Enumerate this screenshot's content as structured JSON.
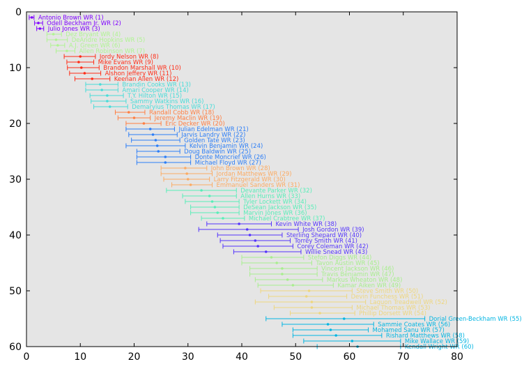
{
  "chart_data": {
    "type": "errorbar-scatter",
    "title": "",
    "xlabel": "",
    "ylabel": "",
    "xlim": [
      0,
      80
    ],
    "ylim": [
      60,
      0
    ],
    "xticks": [
      0,
      10,
      20,
      30,
      40,
      50,
      60,
      70,
      80
    ],
    "yticks": [
      0,
      10,
      20,
      30,
      40,
      50,
      60
    ],
    "grid": false,
    "background": "#e5e5e5",
    "tier_colors": [
      "#7f00ff",
      "#b0f492",
      "#ff2c16",
      "#48dcd8",
      "#ff7e41",
      "#2c7ef7",
      "#fcab63",
      "#58eeb8",
      "#5434fc",
      "#a8ee8e",
      "#eed67e",
      "#03b5e2"
    ],
    "points": [
      {
        "label": "Antonio Brown WR (1)",
        "rank": 1,
        "mean": 1.0,
        "lo": 0.5,
        "hi": 1.4,
        "tier": 0
      },
      {
        "label": "Odell Beckham Jr. WR (2)",
        "rank": 2,
        "mean": 2.2,
        "lo": 1.5,
        "hi": 3.0,
        "tier": 0
      },
      {
        "label": "Julio Jones WR (3)",
        "rank": 3,
        "mean": 2.5,
        "lo": 1.9,
        "hi": 3.2,
        "tier": 0
      },
      {
        "label": "Dez Bryant WR (4)",
        "rank": 4,
        "mean": 5.0,
        "lo": 3.8,
        "hi": 6.5,
        "tier": 1
      },
      {
        "label": "DeAndre Hopkins WR (5)",
        "rank": 5,
        "mean": 5.5,
        "lo": 3.8,
        "hi": 7.6,
        "tier": 1
      },
      {
        "label": "A.J. Green WR (6)",
        "rank": 6,
        "mean": 5.8,
        "lo": 4.5,
        "hi": 7.1,
        "tier": 1
      },
      {
        "label": "Allen Robinson WR (7)",
        "rank": 7,
        "mean": 7.5,
        "lo": 5.5,
        "hi": 9.0,
        "tier": 1
      },
      {
        "label": "Jordy Nelson WR (8)",
        "rank": 8,
        "mean": 10.0,
        "lo": 7.0,
        "hi": 12.8,
        "tier": 2
      },
      {
        "label": "Mike Evans WR (9)",
        "rank": 9,
        "mean": 9.7,
        "lo": 7.5,
        "hi": 12.5,
        "tier": 2
      },
      {
        "label": "Brandon Marshall WR (10)",
        "rank": 10,
        "mean": 10.2,
        "lo": 7.6,
        "hi": 13.5,
        "tier": 2
      },
      {
        "label": "Alshon Jeffery WR (11)",
        "rank": 11,
        "mean": 10.8,
        "lo": 8.0,
        "hi": 13.8,
        "tier": 2
      },
      {
        "label": "Keenan Allen WR (12)",
        "rank": 12,
        "mean": 12.2,
        "lo": 9.0,
        "hi": 15.5,
        "tier": 2
      },
      {
        "label": "Brandin Cooks WR (13)",
        "rank": 13,
        "mean": 13.7,
        "lo": 11.0,
        "hi": 17.0,
        "tier": 3
      },
      {
        "label": "Amari Cooper WR (14)",
        "rank": 14,
        "mean": 14.0,
        "lo": 11.0,
        "hi": 17.0,
        "tier": 3
      },
      {
        "label": "T.Y. Hilton WR (15)",
        "rank": 15,
        "mean": 15.0,
        "lo": 11.8,
        "hi": 18.0,
        "tier": 3
      },
      {
        "label": "Sammy Watkins WR (16)",
        "rank": 16,
        "mean": 15.0,
        "lo": 12.0,
        "hi": 18.5,
        "tier": 3
      },
      {
        "label": "Demaryius Thomas WR (17)",
        "rank": 17,
        "mean": 15.5,
        "lo": 12.5,
        "hi": 18.8,
        "tier": 3
      },
      {
        "label": "Randall Cobb WR (18)",
        "rank": 18,
        "mean": 19.0,
        "lo": 16.5,
        "hi": 22.0,
        "tier": 4
      },
      {
        "label": "Jeremy Maclin WR (19)",
        "rank": 19,
        "mean": 20.0,
        "lo": 17.0,
        "hi": 23.0,
        "tier": 4
      },
      {
        "label": "Eric Decker WR (20)",
        "rank": 20,
        "mean": 21.8,
        "lo": 18.5,
        "hi": 25.0,
        "tier": 4
      },
      {
        "label": "Julian Edelman WR (21)",
        "rank": 21,
        "mean": 23.0,
        "lo": 18.5,
        "hi": 27.5,
        "tier": 5
      },
      {
        "label": "Jarvis Landry WR (22)",
        "rank": 22,
        "mean": 23.5,
        "lo": 19.0,
        "hi": 28.0,
        "tier": 5
      },
      {
        "label": "Golden Tate WR (23)",
        "rank": 23,
        "mean": 24.0,
        "lo": 19.5,
        "hi": 28.5,
        "tier": 5
      },
      {
        "label": "Kelvin Benjamin WR (24)",
        "rank": 24,
        "mean": 24.3,
        "lo": 18.5,
        "hi": 29.5,
        "tier": 5
      },
      {
        "label": "Doug Baldwin WR (25)",
        "rank": 25,
        "mean": 24.5,
        "lo": 20.5,
        "hi": 28.5,
        "tier": 5
      },
      {
        "label": "Donte Moncrief WR (26)",
        "rank": 26,
        "mean": 25.8,
        "lo": 20.5,
        "hi": 30.5,
        "tier": 5
      },
      {
        "label": "Michael Floyd WR (27)",
        "rank": 27,
        "mean": 25.8,
        "lo": 20.5,
        "hi": 30.5,
        "tier": 5
      },
      {
        "label": "John Brown WR (28)",
        "rank": 28,
        "mean": 29.5,
        "lo": 25.0,
        "hi": 33.5,
        "tier": 6
      },
      {
        "label": "Jordan Matthews WR (29)",
        "rank": 29,
        "mean": 29.8,
        "lo": 25.0,
        "hi": 34.5,
        "tier": 6
      },
      {
        "label": "Larry Fitzgerald WR (30)",
        "rank": 30,
        "mean": 30.0,
        "lo": 25.5,
        "hi": 34.0,
        "tier": 6
      },
      {
        "label": "Emmanuel Sanders WR (31)",
        "rank": 31,
        "mean": 30.5,
        "lo": 27.0,
        "hi": 34.5,
        "tier": 6
      },
      {
        "label": "Devante Parker WR (32)",
        "rank": 32,
        "mean": 32.5,
        "lo": 26.0,
        "hi": 39.0,
        "tier": 7
      },
      {
        "label": "Allen Hurns WR (33)",
        "rank": 33,
        "mean": 34.0,
        "lo": 29.0,
        "hi": 39.0,
        "tier": 7
      },
      {
        "label": "Tyler Lockett WR (34)",
        "rank": 34,
        "mean": 34.5,
        "lo": 29.5,
        "hi": 39.5,
        "tier": 7
      },
      {
        "label": "DeSean Jackson WR (35)",
        "rank": 35,
        "mean": 35.0,
        "lo": 30.5,
        "hi": 39.5,
        "tier": 7
      },
      {
        "label": "Marvin Jones WR (36)",
        "rank": 36,
        "mean": 35.5,
        "lo": 30.5,
        "hi": 39.5,
        "tier": 7
      },
      {
        "label": "Michael Crabtree WR (37)",
        "rank": 37,
        "mean": 36.5,
        "lo": 32.5,
        "hi": 40.5,
        "tier": 7
      },
      {
        "label": "Kevin White WR (38)",
        "rank": 38,
        "mean": 39.5,
        "lo": 33.5,
        "hi": 45.5,
        "tier": 8
      },
      {
        "label": "Josh Gordon WR (39)",
        "rank": 39,
        "mean": 41.0,
        "lo": 32.0,
        "hi": 50.5,
        "tier": 8
      },
      {
        "label": "Sterling Shepard WR (40)",
        "rank": 40,
        "mean": 41.5,
        "lo": 35.5,
        "hi": 47.5,
        "tier": 8
      },
      {
        "label": "Torrey Smith WR (41)",
        "rank": 41,
        "mean": 42.5,
        "lo": 36.0,
        "hi": 49.0,
        "tier": 8
      },
      {
        "label": "Corey Coleman WR (42)",
        "rank": 42,
        "mean": 43.0,
        "lo": 36.5,
        "hi": 49.5,
        "tier": 8
      },
      {
        "label": "Willie Snead WR (43)",
        "rank": 43,
        "mean": 44.5,
        "lo": 38.5,
        "hi": 51.0,
        "tier": 8
      },
      {
        "label": "Stefon Diggs WR (44)",
        "rank": 44,
        "mean": 45.5,
        "lo": 40.0,
        "hi": 51.5,
        "tier": 9
      },
      {
        "label": "Tavon Austin WR (45)",
        "rank": 45,
        "mean": 46.5,
        "lo": 40.0,
        "hi": 53.0,
        "tier": 9
      },
      {
        "label": "Vincent Jackson WR (46)",
        "rank": 46,
        "mean": 47.5,
        "lo": 41.5,
        "hi": 54.0,
        "tier": 9
      },
      {
        "label": "Travis Benjamin WR (47)",
        "rank": 47,
        "mean": 47.5,
        "lo": 41.5,
        "hi": 54.0,
        "tier": 9
      },
      {
        "label": "Markus Wheaton WR (48)",
        "rank": 48,
        "mean": 48.5,
        "lo": 42.5,
        "hi": 55.0,
        "tier": 9
      },
      {
        "label": "Kamar Aiken WR (49)",
        "rank": 49,
        "mean": 49.5,
        "lo": 43.0,
        "hi": 57.0,
        "tier": 9
      },
      {
        "label": "Steve Smith WR (50)",
        "rank": 50,
        "mean": 52.5,
        "lo": 43.5,
        "hi": 60.5,
        "tier": 10
      },
      {
        "label": "Devin Funchess WR (51)",
        "rank": 51,
        "mean": 52.0,
        "lo": 45.0,
        "hi": 59.5,
        "tier": 10
      },
      {
        "label": "Laquon Treadwell WR (52)",
        "rank": 52,
        "mean": 53.0,
        "lo": 42.5,
        "hi": 63.0,
        "tier": 10
      },
      {
        "label": "Michael Thomas WR (53)",
        "rank": 53,
        "mean": 53.0,
        "lo": 46.0,
        "hi": 60.5,
        "tier": 10
      },
      {
        "label": "Phillip Dorsett WR (54)",
        "rank": 54,
        "mean": 54.5,
        "lo": 49.0,
        "hi": 61.0,
        "tier": 10
      },
      {
        "label": "Dorial Green-Beckham WR (55)",
        "rank": 55,
        "mean": 59.0,
        "lo": 44.5,
        "hi": 74.0,
        "tier": 11
      },
      {
        "label": "Sammie Coates WR (56)",
        "rank": 56,
        "mean": 56.0,
        "lo": 47.5,
        "hi": 64.5,
        "tier": 11
      },
      {
        "label": "Mohamed Sanu WR (57)",
        "rank": 57,
        "mean": 56.5,
        "lo": 49.5,
        "hi": 63.5,
        "tier": 11
      },
      {
        "label": "Rishard Matthews WR (58)",
        "rank": 58,
        "mean": 57.5,
        "lo": 49.5,
        "hi": 66.0,
        "tier": 11
      },
      {
        "label": "Mike Wallace WR (59)",
        "rank": 59,
        "mean": 60.5,
        "lo": 51.5,
        "hi": 69.5,
        "tier": 11
      },
      {
        "label": "Kendall Wright WR (60)",
        "rank": 60,
        "mean": 61.5,
        "lo": 54.0,
        "hi": 69.5,
        "tier": 11
      }
    ]
  }
}
